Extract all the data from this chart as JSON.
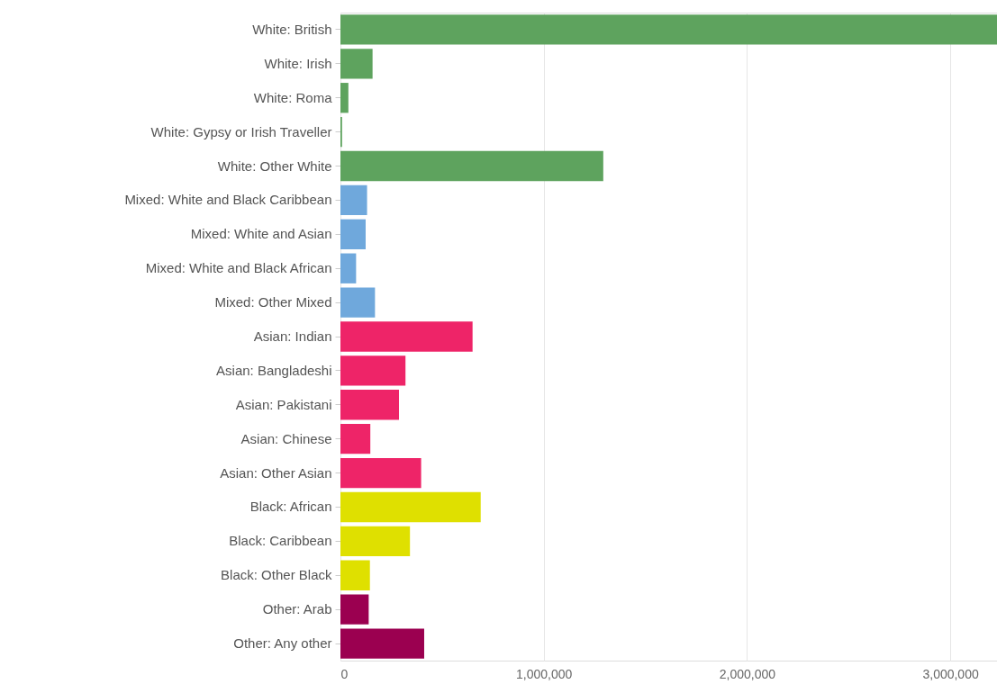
{
  "chart_data": {
    "type": "bar",
    "orientation": "horizontal",
    "categories": [
      "White: British",
      "White: Irish",
      "White: Roma",
      "White: Gypsy or Irish Traveller",
      "White: Other White",
      "Mixed: White and Black Caribbean",
      "Mixed: White and Asian",
      "Mixed: White and Black African",
      "Mixed: Other Mixed",
      "Asian: Indian",
      "Asian: Bangladeshi",
      "Asian: Pakistani",
      "Asian: Chinese",
      "Asian: Other Asian",
      "Black: African",
      "Black: Caribbean",
      "Black: Other Black",
      "Other: Arab",
      "Other: Any other"
    ],
    "values": [
      3230000,
      158000,
      39000,
      8000,
      1293000,
      131000,
      124000,
      77000,
      170000,
      650000,
      320000,
      288000,
      147000,
      397000,
      690000,
      342000,
      145000,
      139000,
      412000
    ],
    "colors": [
      "#5ea35e",
      "#5ea35e",
      "#5ea35e",
      "#5ea35e",
      "#5ea35e",
      "#6fa8dc",
      "#6fa8dc",
      "#6fa8dc",
      "#6fa8dc",
      "#ee2468",
      "#ee2468",
      "#ee2468",
      "#ee2468",
      "#ee2468",
      "#dfe000",
      "#dfe000",
      "#dfe000",
      "#9b0050",
      "#9b0050"
    ],
    "xlim": [
      0,
      3230000
    ],
    "xticks": [
      {
        "value": 0,
        "label": "0"
      },
      {
        "value": 1000000,
        "label": "1,000,000"
      },
      {
        "value": 2000000,
        "label": "2,000,000"
      },
      {
        "value": 3000000,
        "label": "3,000,000"
      }
    ],
    "grid": "x"
  }
}
